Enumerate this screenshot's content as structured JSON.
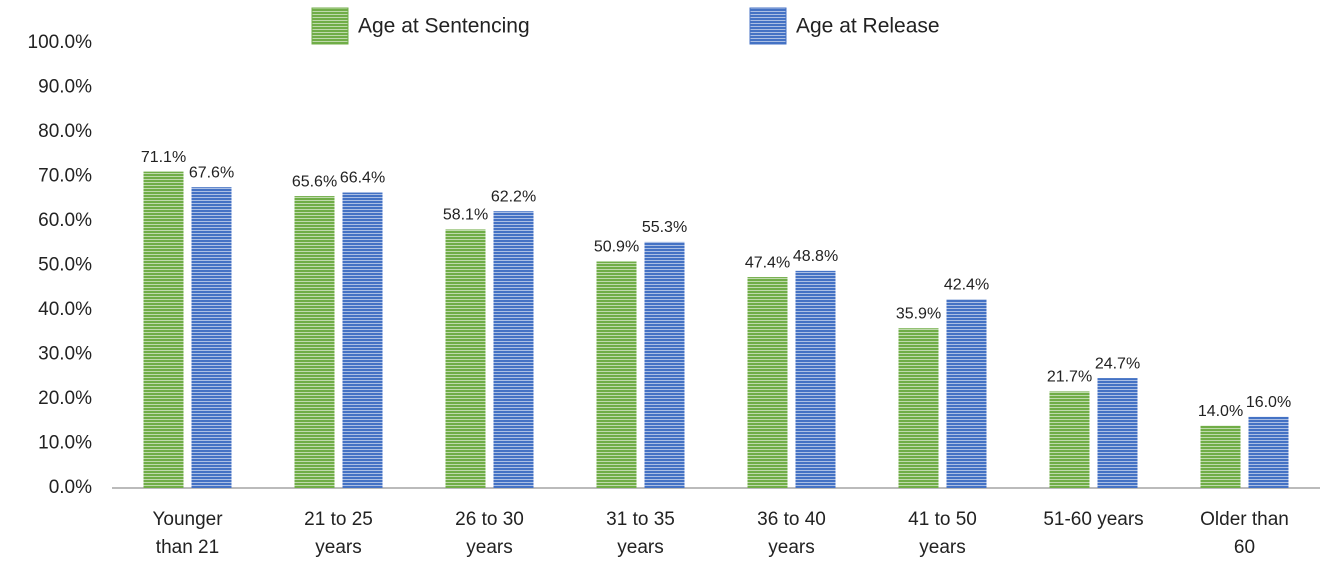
{
  "chart_data": {
    "type": "bar",
    "categories": [
      "Younger than 21",
      "21 to 25 years",
      "26 to 30 years",
      "31 to 35 years",
      "36 to 40 years",
      "41 to 50 years",
      "51-60 years",
      "Older than 60"
    ],
    "series": [
      {
        "name": "Age at Sentencing",
        "color": "#70ad47",
        "values": [
          71.1,
          65.6,
          58.1,
          50.9,
          47.4,
          35.9,
          21.7,
          14.0
        ],
        "value_labels": [
          "71.1%",
          "65.6%",
          "58.1%",
          "50.9%",
          "47.4%",
          "35.9%",
          "21.7%",
          "14.0%"
        ]
      },
      {
        "name": "Age at Release",
        "color": "#4472c4",
        "values": [
          67.6,
          66.4,
          62.2,
          55.3,
          48.8,
          42.4,
          24.7,
          16.0
        ],
        "value_labels": [
          "67.6%",
          "66.4%",
          "62.2%",
          "55.3%",
          "48.8%",
          "42.4%",
          "24.7%",
          "16.0%"
        ]
      }
    ],
    "ylim": [
      0,
      100
    ],
    "yticks": [
      {
        "value": 0,
        "label": "0.0%"
      },
      {
        "value": 10,
        "label": "10.0%"
      },
      {
        "value": 20,
        "label": "20.0%"
      },
      {
        "value": 30,
        "label": "30.0%"
      },
      {
        "value": 40,
        "label": "40.0%"
      },
      {
        "value": 50,
        "label": "50.0%"
      },
      {
        "value": 60,
        "label": "60.0%"
      },
      {
        "value": 70,
        "label": "70.0%"
      },
      {
        "value": 80,
        "label": "80.0%"
      },
      {
        "value": 90,
        "label": "90.0%"
      },
      {
        "value": 100,
        "label": "100.0%"
      }
    ],
    "grid": false,
    "legend": "top"
  }
}
